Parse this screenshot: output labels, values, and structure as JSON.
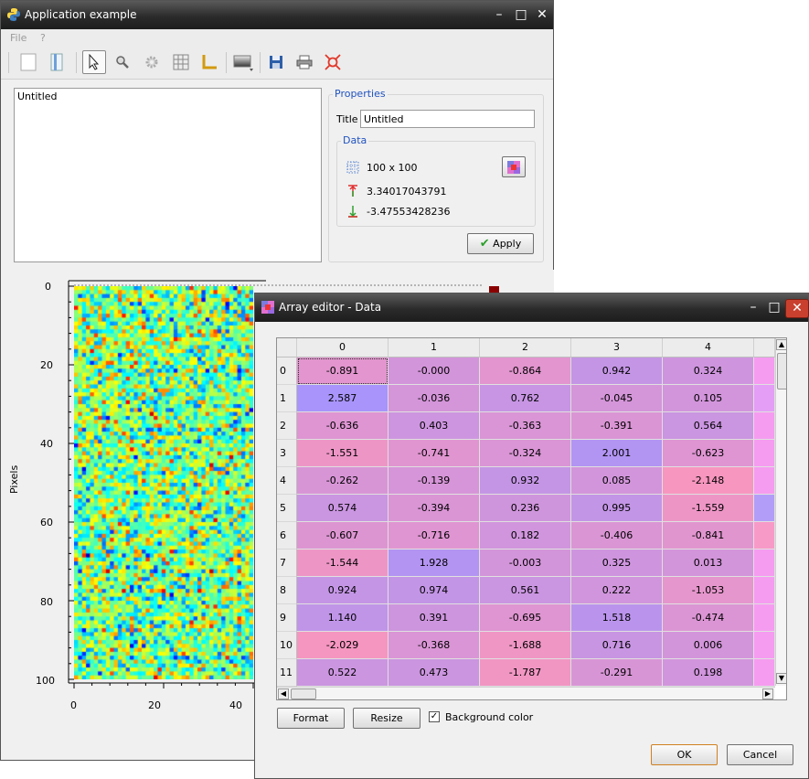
{
  "main_window": {
    "title": "Application example",
    "menu": {
      "file": "File",
      "help": "?"
    },
    "list": {
      "items": [
        "Untitled"
      ]
    },
    "properties": {
      "group_label": "Properties",
      "title_label": "Title",
      "title_value": "Untitled",
      "data_group_label": "Data",
      "size": "100 x 100",
      "max_value": "3.34017043791",
      "min_value": "-3.47553428236",
      "apply_label": "Apply"
    },
    "plot": {
      "y_ticks": [
        "0",
        "20",
        "40",
        "60",
        "80",
        "100"
      ],
      "x_ticks": [
        "0",
        "20",
        "40"
      ],
      "ylabel": "Pixels"
    }
  },
  "array_editor": {
    "title": "Array editor - Data",
    "columns": [
      "0",
      "1",
      "2",
      "3",
      "4"
    ],
    "rows": [
      {
        "index": "0",
        "values": [
          "-0.891",
          "-0.000",
          "-0.864",
          "0.942",
          "0.324"
        ]
      },
      {
        "index": "1",
        "values": [
          "2.587",
          "-0.036",
          "0.762",
          "-0.045",
          "0.105"
        ]
      },
      {
        "index": "2",
        "values": [
          "-0.636",
          "0.403",
          "-0.363",
          "-0.391",
          "0.564"
        ]
      },
      {
        "index": "3",
        "values": [
          "-1.551",
          "-0.741",
          "-0.324",
          "2.001",
          "-0.623"
        ]
      },
      {
        "index": "4",
        "values": [
          "-0.262",
          "-0.139",
          "0.932",
          "0.085",
          "-2.148"
        ]
      },
      {
        "index": "5",
        "values": [
          "0.574",
          "-0.394",
          "0.236",
          "0.995",
          "-1.559"
        ]
      },
      {
        "index": "6",
        "values": [
          "-0.607",
          "-0.716",
          "0.182",
          "-0.406",
          "-0.841"
        ]
      },
      {
        "index": "7",
        "values": [
          "-1.544",
          "1.928",
          "-0.003",
          "0.325",
          "0.013"
        ]
      },
      {
        "index": "8",
        "values": [
          "0.924",
          "0.974",
          "0.561",
          "0.222",
          "-1.053"
        ]
      },
      {
        "index": "9",
        "values": [
          "1.140",
          "0.391",
          "-0.695",
          "1.518",
          "-0.474"
        ]
      },
      {
        "index": "10",
        "values": [
          "-2.029",
          "-0.368",
          "-1.688",
          "0.716",
          "0.006"
        ]
      },
      {
        "index": "11",
        "values": [
          "0.522",
          "0.473",
          "-1.787",
          "-0.291",
          "0.198"
        ]
      }
    ],
    "partial_column_colors": [
      "#f59cf0",
      "#e49ef6",
      "#f59cf0",
      "#f59cf0",
      "#f59cf0",
      "#b29ef8",
      "#f89ac8",
      "#f59cf0",
      "#f59cf0",
      "#f59cf0",
      "#f59cf0",
      "#f59cf0"
    ],
    "format_label": "Format",
    "resize_label": "Resize",
    "background_color_label": "Background color",
    "background_color_checked": true,
    "ok_label": "OK",
    "cancel_label": "Cancel"
  }
}
